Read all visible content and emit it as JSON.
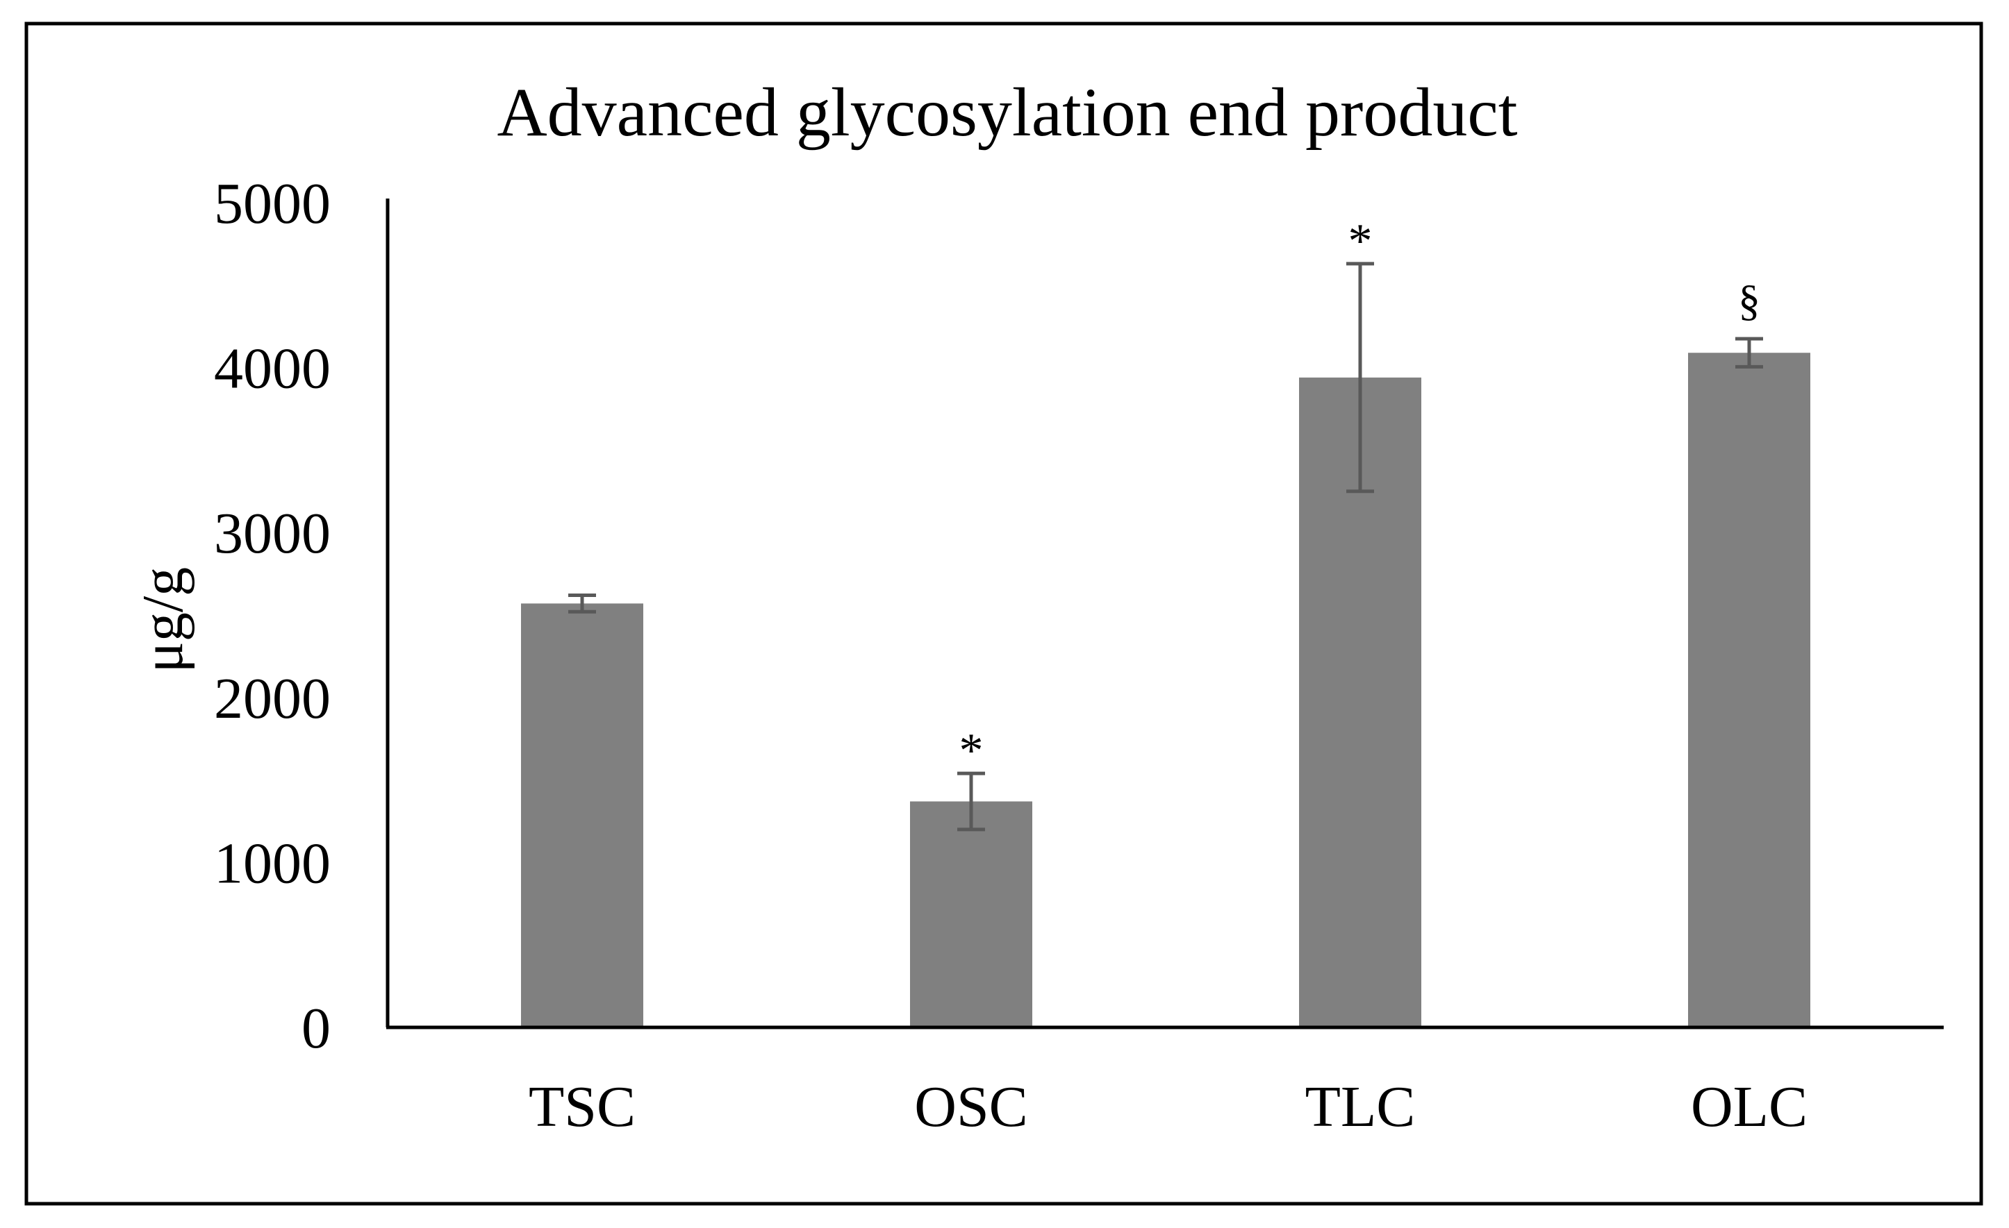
{
  "chart_data": {
    "type": "bar",
    "title": "Advanced glycosylation end product",
    "xlabel": "",
    "ylabel": "μg/g",
    "categories": [
      "TSC",
      "OSC",
      "TLC",
      "OLC"
    ],
    "values": [
      2570,
      1370,
      3940,
      4090
    ],
    "error": [
      50,
      170,
      690,
      85
    ],
    "annotations": [
      "",
      "*",
      "*",
      "§"
    ],
    "ylim": [
      0,
      5000
    ],
    "yticks": [
      0,
      1000,
      2000,
      3000,
      4000,
      5000
    ],
    "ytick_labels": [
      "0",
      "1000",
      "2000",
      "3000",
      "4000",
      "5000"
    ],
    "grid": false,
    "legend": "none",
    "colors": {
      "bar": "#808080",
      "error_bar": "#595959",
      "axis": "#000000",
      "frame": "#000000",
      "text": "#000000"
    }
  }
}
